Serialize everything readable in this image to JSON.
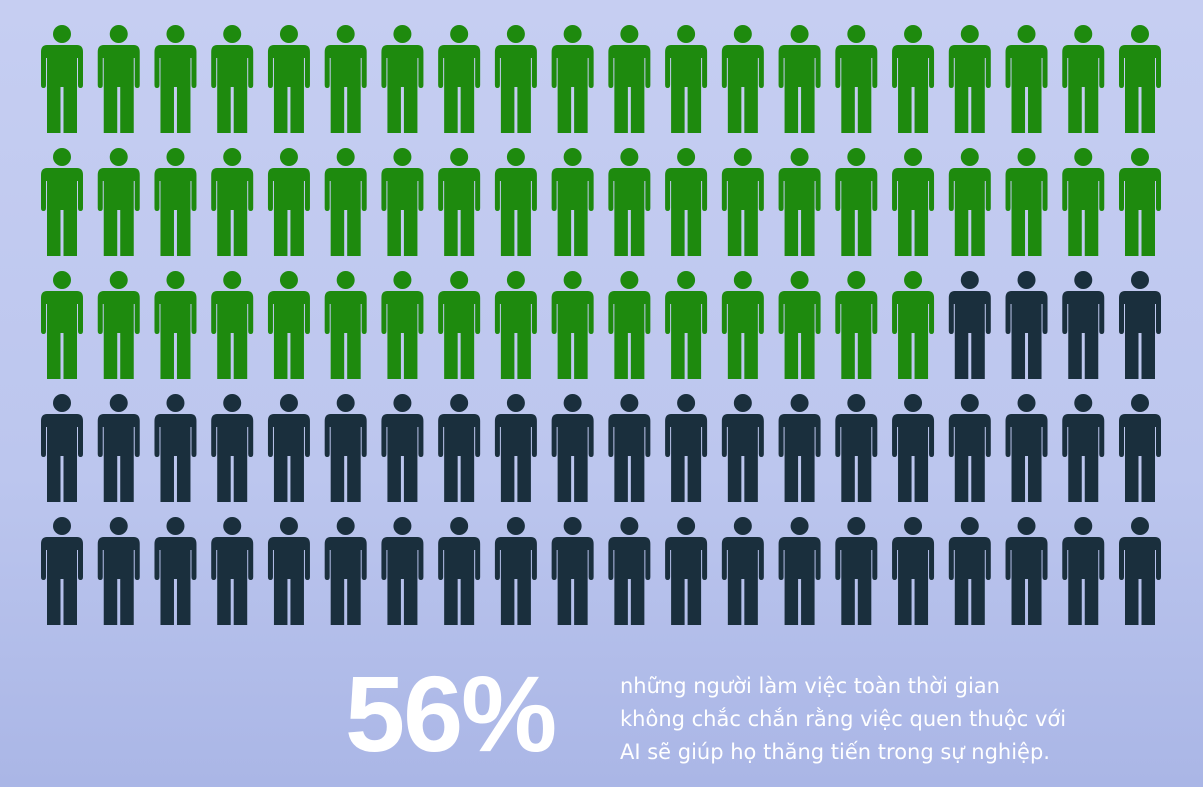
{
  "chart_data": {
    "type": "pictograph",
    "values": [
      56
    ],
    "value_labels": [
      "56%"
    ],
    "total": 100,
    "color": "#1e8a0e",
    "rest_color": "#1a2f3d",
    "description": "những người làm việc toàn thời gian không chắc chắn rằng việc quen thuộc với AI sẽ giúp họ thăng tiến trong sự nghiệp."
  }
}
